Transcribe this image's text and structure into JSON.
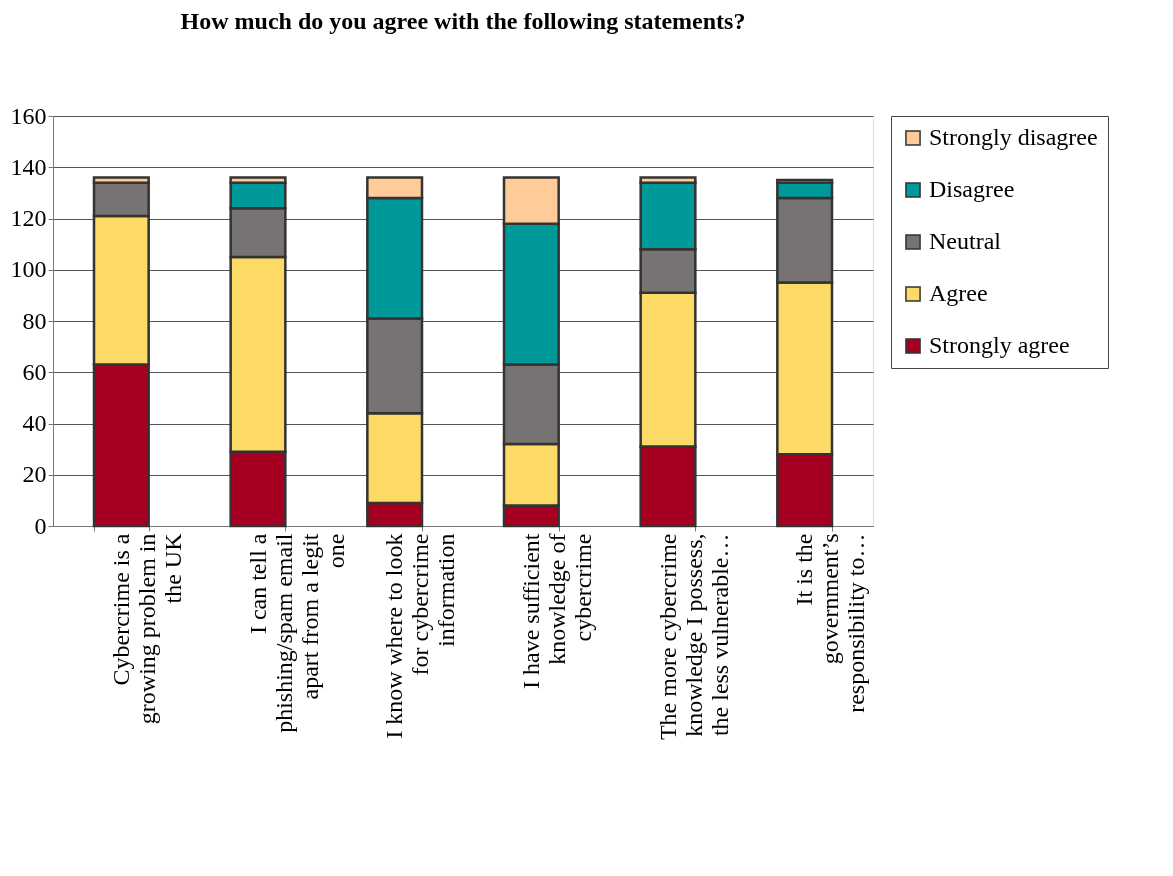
{
  "chart_data": {
    "type": "bar",
    "stacked": true,
    "title": "How much do you agree with the following statements?",
    "categories": [
      "Cybercrime is a growing problem in the UK",
      "I can tell a phishing/spam email apart from a legit one",
      "I know where to look for cybercrime information",
      "I have sufficient knowledge of cybercrime",
      "The more cybercrime knowledge I possess, the less vulnerable…",
      "It is the government’s responsibility to…"
    ],
    "series": [
      {
        "name": "Strongly agree",
        "color": "#a50021",
        "values": [
          63,
          29,
          9,
          8,
          31,
          28
        ]
      },
      {
        "name": "Agree",
        "color": "#fdd966",
        "values": [
          58,
          76,
          35,
          24,
          60,
          67
        ]
      },
      {
        "name": "Neutral",
        "color": "#777372",
        "values": [
          13,
          19,
          37,
          31,
          17,
          33
        ]
      },
      {
        "name": "Disagree",
        "color": "#009999",
        "values": [
          0,
          10,
          47,
          55,
          26,
          6
        ]
      },
      {
        "name": "Strongly disagree",
        "color": "#ffcc99",
        "values": [
          2,
          2,
          8,
          18,
          2,
          1
        ]
      }
    ],
    "ylim": [
      0,
      160
    ],
    "yticks": [
      0,
      20,
      40,
      60,
      80,
      100,
      120,
      140,
      160
    ],
    "grid": "y",
    "legend": "right"
  }
}
